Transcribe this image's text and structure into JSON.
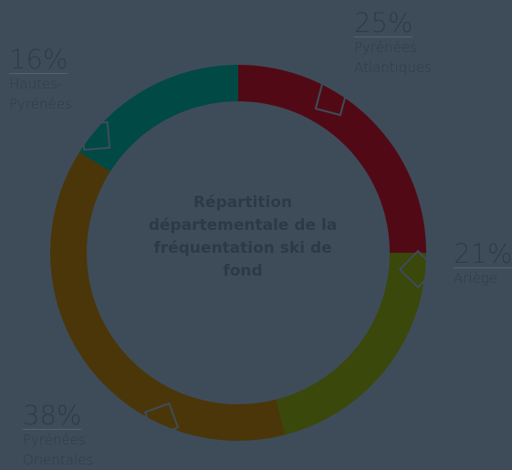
{
  "chart_data": {
    "type": "donut",
    "title": "Répartition départementale de la fréquentation ski de fond",
    "categories": [
      "Pyrénées Atlantiques",
      "Ariège",
      "Pyrénées Orientales",
      "Hautes-Pyrénées"
    ],
    "values": [
      25,
      21,
      38,
      16
    ],
    "value_labels": [
      "25%",
      "21%",
      "38%",
      "16%"
    ],
    "colors": [
      "#510a15",
      "#3a480c",
      "#4a3609",
      "#004944"
    ]
  }
}
